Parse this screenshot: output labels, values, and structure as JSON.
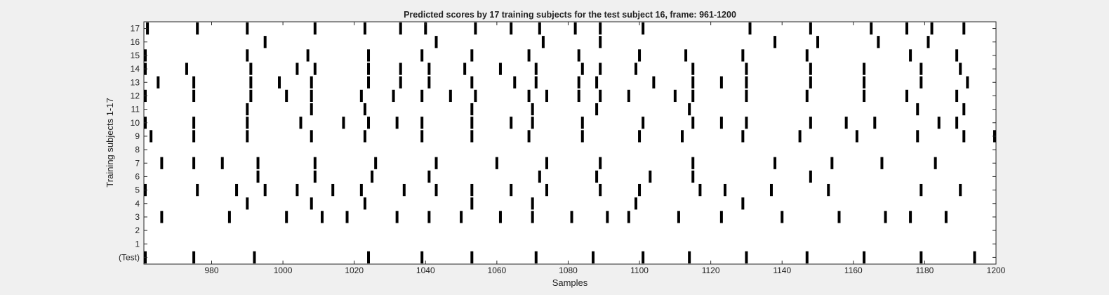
{
  "chart_data": {
    "type": "scatter",
    "title": "Predicted scores by 17 training subjects for the test subject 16, frame: 961-1200",
    "xlabel": "Samples",
    "ylabel": "Training subjects 1-17",
    "xlim": [
      961,
      1200
    ],
    "ylim": [
      -0.5,
      17.5
    ],
    "xticks": [
      980,
      1000,
      1020,
      1040,
      1060,
      1080,
      1100,
      1120,
      1140,
      1160,
      1180,
      1200
    ],
    "yticks": [
      {
        "value": 0,
        "label": "(Test)"
      },
      {
        "value": 1,
        "label": "1"
      },
      {
        "value": 2,
        "label": "2"
      },
      {
        "value": 3,
        "label": "3"
      },
      {
        "value": 4,
        "label": "4"
      },
      {
        "value": 5,
        "label": "5"
      },
      {
        "value": 6,
        "label": "6"
      },
      {
        "value": 7,
        "label": "7"
      },
      {
        "value": 8,
        "label": "8"
      },
      {
        "value": 9,
        "label": "9"
      },
      {
        "value": 10,
        "label": "10"
      },
      {
        "value": 11,
        "label": "11"
      },
      {
        "value": 12,
        "label": "12"
      },
      {
        "value": 13,
        "label": "13"
      },
      {
        "value": 14,
        "label": "14"
      },
      {
        "value": 15,
        "label": "15"
      },
      {
        "value": 16,
        "label": "16"
      },
      {
        "value": 17,
        "label": "17"
      }
    ],
    "grid": false,
    "marker_color": "#000000",
    "rows": [
      {
        "row": 0,
        "x": [
          961,
          975,
          992,
          1024,
          1039,
          1053,
          1071,
          1087,
          1101,
          1114,
          1130,
          1147,
          1163,
          1179,
          1194
        ]
      },
      {
        "row": 1,
        "x": []
      },
      {
        "row": 2,
        "x": []
      },
      {
        "row": 3,
        "x": [
          966,
          985,
          1001,
          1011,
          1018,
          1032,
          1041,
          1050,
          1061,
          1070,
          1081,
          1091,
          1097,
          1111,
          1123,
          1140,
          1156,
          1169,
          1176,
          1186
        ]
      },
      {
        "row": 4,
        "x": [
          990,
          1008,
          1023,
          1053,
          1070,
          1099,
          1129
        ]
      },
      {
        "row": 5,
        "x": [
          961,
          976,
          987,
          995,
          1004,
          1014,
          1022,
          1034,
          1043,
          1053,
          1064,
          1074,
          1089,
          1100,
          1117,
          1124,
          1137,
          1153,
          1179,
          1190
        ]
      },
      {
        "row": 6,
        "x": [
          993,
          1009,
          1025,
          1041,
          1072,
          1088,
          1103,
          1115,
          1148
        ]
      },
      {
        "row": 7,
        "x": [
          966,
          975,
          983,
          993,
          1009,
          1026,
          1043,
          1060,
          1074,
          1089,
          1115,
          1138,
          1154,
          1168,
          1183
        ]
      },
      {
        "row": 8,
        "x": []
      },
      {
        "row": 9,
        "x": [
          963,
          975,
          990,
          1008,
          1023,
          1039,
          1053,
          1069,
          1084,
          1100,
          1112,
          1129,
          1145,
          1161,
          1178,
          1191,
          1203
        ]
      },
      {
        "row": 10,
        "x": [
          961,
          975,
          990,
          1005,
          1017,
          1024,
          1032,
          1039,
          1053,
          1064,
          1070,
          1084,
          1101,
          1115,
          1123,
          1130,
          1148,
          1158,
          1166,
          1184,
          1189
        ]
      },
      {
        "row": 11,
        "x": [
          990,
          1008,
          1023,
          1053,
          1070,
          1088,
          1114,
          1178,
          1191
        ]
      },
      {
        "row": 12,
        "x": [
          961,
          975,
          991,
          1001,
          1008,
          1022,
          1031,
          1039,
          1047,
          1054,
          1069,
          1074,
          1083,
          1089,
          1097,
          1110,
          1115,
          1130,
          1147,
          1163,
          1175,
          1189
        ]
      },
      {
        "row": 13,
        "x": [
          965,
          975,
          991,
          999,
          1008,
          1024,
          1033,
          1041,
          1053,
          1065,
          1071,
          1083,
          1088,
          1104,
          1115,
          1123,
          1130,
          1148,
          1163,
          1179,
          1192
        ]
      },
      {
        "row": 14,
        "x": [
          961,
          973,
          991,
          1004,
          1009,
          1024,
          1033,
          1041,
          1051,
          1061,
          1071,
          1084,
          1089,
          1099,
          1115,
          1130,
          1148,
          1163,
          1179,
          1190
        ]
      },
      {
        "row": 15,
        "x": [
          961,
          990,
          1007,
          1024,
          1039,
          1053,
          1069,
          1083,
          1100,
          1113,
          1129,
          1147,
          1176,
          1189
        ]
      },
      {
        "row": 16,
        "x": [
          995,
          1043,
          1073,
          1089,
          1138,
          1150,
          1167,
          1181
        ]
      },
      {
        "row": 17,
        "x": [
          962,
          976,
          990,
          1009,
          1023,
          1033,
          1040,
          1054,
          1064,
          1072,
          1082,
          1089,
          1101,
          1131,
          1148,
          1165,
          1175,
          1182,
          1191
        ]
      }
    ]
  }
}
